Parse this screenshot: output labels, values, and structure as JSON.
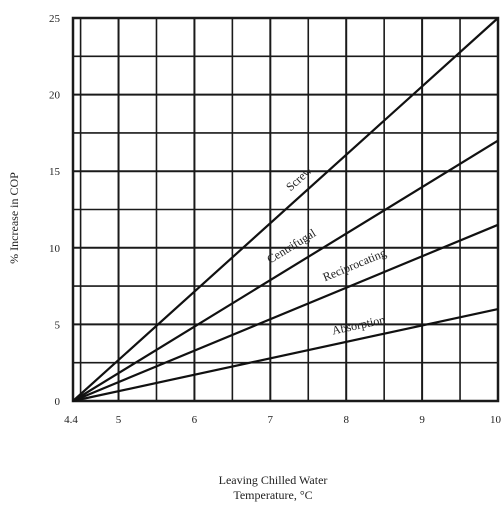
{
  "chart_data": {
    "type": "line",
    "xlabel_lines": [
      "Leaving Chilled Water",
      "Temperature, °C"
    ],
    "ylabel": "% Increase in COP",
    "xlim": [
      4.4,
      10
    ],
    "ylim": [
      0,
      25
    ],
    "x_ticks": [
      4.4,
      5,
      6,
      7,
      8,
      9,
      10
    ],
    "x_tick_labels": [
      "4.4",
      "5",
      "6",
      "7",
      "8",
      "9",
      "10"
    ],
    "y_ticks": [
      0,
      5,
      10,
      15,
      20,
      25
    ],
    "y_tick_labels": [
      "0",
      "5",
      "10",
      "15",
      "20",
      "25"
    ],
    "grid": true,
    "grid_x_step": 0.5,
    "grid_y_step": 2.5,
    "series": [
      {
        "name": "Screw",
        "x": [
          4.4,
          10
        ],
        "y": [
          0,
          25
        ],
        "label_at_x": 7.5,
        "label_offset": 10
      },
      {
        "name": "Centrifugal",
        "x": [
          4.4,
          10
        ],
        "y": [
          0,
          17
        ],
        "label_at_x": 7.4,
        "label_offset": 14
      },
      {
        "name": "Reciprocating",
        "x": [
          4.4,
          10
        ],
        "y": [
          0,
          11.5
        ],
        "label_at_x": 8.2,
        "label_offset": 14
      },
      {
        "name": "Absorption",
        "x": [
          4.4,
          10
        ],
        "y": [
          0,
          6
        ],
        "label_at_x": 8.2,
        "label_offset": 10
      }
    ]
  }
}
